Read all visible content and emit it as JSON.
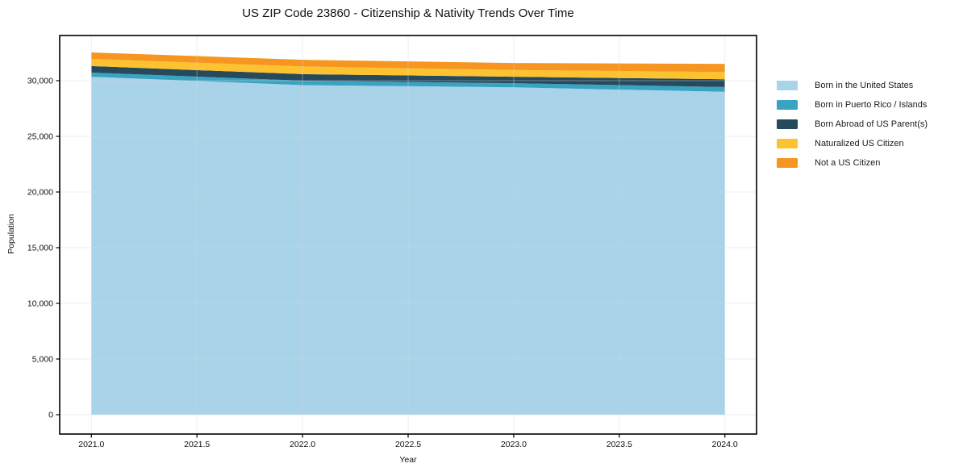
{
  "chart": {
    "title": "US ZIP Code 23860 - Citizenship & Nativity Trends Over Time",
    "xlabel": "Year",
    "ylabel": "Population"
  },
  "chart_data": {
    "type": "area",
    "stacked": true,
    "title": "US ZIP Code 23860 - Citizenship & Nativity Trends Over Time",
    "xlabel": "Year",
    "ylabel": "Population",
    "grid": true,
    "legend_position": "right-outside",
    "x": [
      2021,
      2022,
      2023,
      2024
    ],
    "series": [
      {
        "key": "born_us",
        "name": "Born in the United States",
        "color": "#a8d3e8",
        "values": [
          30350,
          29600,
          29400,
          29000
        ]
      },
      {
        "key": "born_pr_islands",
        "name": "Born in Puerto Rico / Islands",
        "color": "#39a4c1",
        "values": [
          380,
          400,
          380,
          430
        ]
      },
      {
        "key": "born_abroad",
        "name": "Born Abroad of US Parent(s)",
        "color": "#26495c",
        "values": [
          580,
          590,
          580,
          700
        ]
      },
      {
        "key": "naturalized",
        "name": "Naturalized US Citizen",
        "color": "#fcc230",
        "values": [
          650,
          690,
          600,
          650
        ]
      },
      {
        "key": "not_citizen",
        "name": "Not a US Citizen",
        "color": "#f6951f",
        "values": [
          580,
          600,
          630,
          730
        ]
      }
    ],
    "totals": [
      32540,
      31880,
      31590,
      31510
    ],
    "xlim": [
      2020.85,
      2024.15
    ],
    "ylim": [
      -1740,
      34060
    ],
    "x_ticks": [
      {
        "v": 2021.0,
        "label": "2021.0"
      },
      {
        "v": 2021.5,
        "label": "2021.5"
      },
      {
        "v": 2022.0,
        "label": "2022.0"
      },
      {
        "v": 2022.5,
        "label": "2022.5"
      },
      {
        "v": 2023.0,
        "label": "2023.0"
      },
      {
        "v": 2023.5,
        "label": "2023.5"
      },
      {
        "v": 2024.0,
        "label": "2024.0"
      }
    ],
    "y_ticks": [
      {
        "v": 0,
        "label": "0"
      },
      {
        "v": 5000,
        "label": "5,000"
      },
      {
        "v": 10000,
        "label": "10,000"
      },
      {
        "v": 15000,
        "label": "15,000"
      },
      {
        "v": 20000,
        "label": "20,000"
      },
      {
        "v": 25000,
        "label": "25,000"
      },
      {
        "v": 30000,
        "label": "30,000"
      }
    ],
    "colors": {
      "spine": "#000000",
      "grid": "#e3e3e3",
      "text": "#111111"
    }
  }
}
